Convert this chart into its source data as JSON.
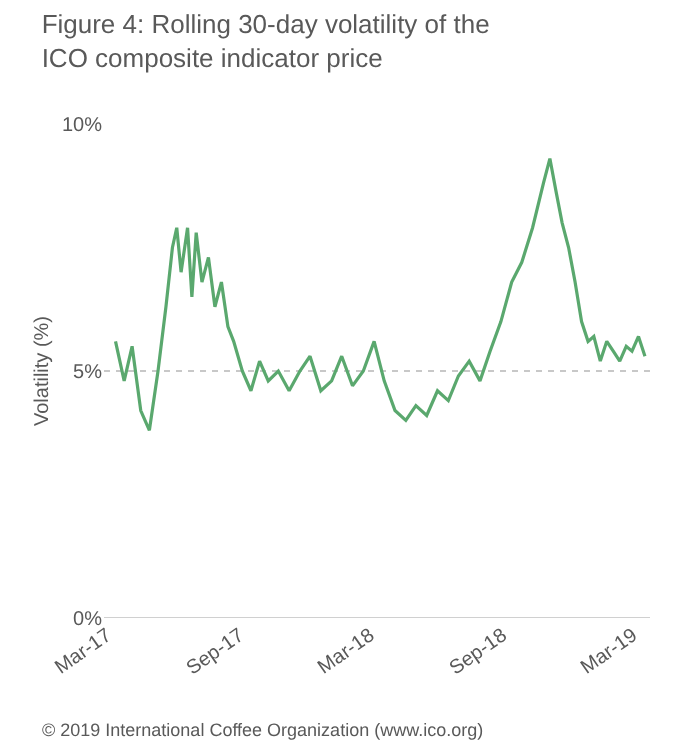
{
  "chart_data": {
    "type": "line",
    "title": "Figure 4: Rolling 30-day volatility of the ICO composite indicator price",
    "ylabel": "Volatility (%)",
    "annotations": [
      "© 2019 International Coffee Organization (www.ico.org)"
    ],
    "x": [
      "2017-03-13",
      "2017-03-25",
      "2017-04-05",
      "2017-04-17",
      "2017-04-29",
      "2017-05-11",
      "2017-05-22",
      "2017-05-31",
      "2017-06-06",
      "2017-06-12",
      "2017-06-21",
      "2017-06-27",
      "2017-07-03",
      "2017-07-11",
      "2017-07-20",
      "2017-07-29",
      "2017-08-07",
      "2017-08-16",
      "2017-08-24",
      "2017-09-05",
      "2017-09-17",
      "2017-09-29",
      "2017-10-11",
      "2017-10-25",
      "2017-11-09",
      "2017-11-24",
      "2017-12-08",
      "2017-12-23",
      "2018-01-07",
      "2018-01-21",
      "2018-02-05",
      "2018-02-20",
      "2018-03-07",
      "2018-03-21",
      "2018-04-05",
      "2018-04-20",
      "2018-05-04",
      "2018-05-19",
      "2018-06-03",
      "2018-06-18",
      "2018-07-02",
      "2018-07-17",
      "2018-08-01",
      "2018-08-15",
      "2018-08-30",
      "2018-09-14",
      "2018-09-28",
      "2018-10-13",
      "2018-10-28",
      "2018-11-06",
      "2018-11-15",
      "2018-11-23",
      "2018-12-02",
      "2018-12-11",
      "2018-12-20",
      "2018-12-29",
      "2019-01-06",
      "2019-01-15",
      "2019-01-24",
      "2019-02-02",
      "2019-02-11",
      "2019-02-20",
      "2019-02-28",
      "2019-03-09",
      "2019-03-18"
    ],
    "series": [
      {
        "color": "#5aa86e",
        "values": [
          5.6,
          4.8,
          5.5,
          4.2,
          3.8,
          5.0,
          6.3,
          7.5,
          7.9,
          7.0,
          7.9,
          6.5,
          7.8,
          6.8,
          7.3,
          6.3,
          6.8,
          5.9,
          5.6,
          5.0,
          4.6,
          5.2,
          4.8,
          5.0,
          4.6,
          5.0,
          5.3,
          4.6,
          4.8,
          5.3,
          4.7,
          5.0,
          5.6,
          4.8,
          4.2,
          4.0,
          4.3,
          4.1,
          4.6,
          4.4,
          4.9,
          5.2,
          4.8,
          5.4,
          6.0,
          6.8,
          7.2,
          7.9,
          8.8,
          9.3,
          8.6,
          8.0,
          7.5,
          6.8,
          6.0,
          5.6,
          5.7,
          5.2,
          5.6,
          5.4,
          5.2,
          5.5,
          5.4,
          5.7,
          5.3
        ]
      }
    ],
    "xlim": [
      "2017-02-25",
      "2019-03-25"
    ],
    "xticks": [
      {
        "value": "2017-03-01",
        "label": "Mar-17"
      },
      {
        "value": "2017-09-01",
        "label": "Sep-17"
      },
      {
        "value": "2018-03-01",
        "label": "Mar-18"
      },
      {
        "value": "2018-09-01",
        "label": "Sep-18"
      },
      {
        "value": "2019-03-01",
        "label": "Mar-19"
      }
    ],
    "ylim": [
      0,
      10
    ],
    "yticks": [
      {
        "value": 0,
        "label": "0%"
      },
      {
        "value": 5,
        "label": "5%"
      },
      {
        "value": 10,
        "label": "10%"
      }
    ],
    "grid": "y",
    "marker": "none",
    "line_style": "solid"
  }
}
